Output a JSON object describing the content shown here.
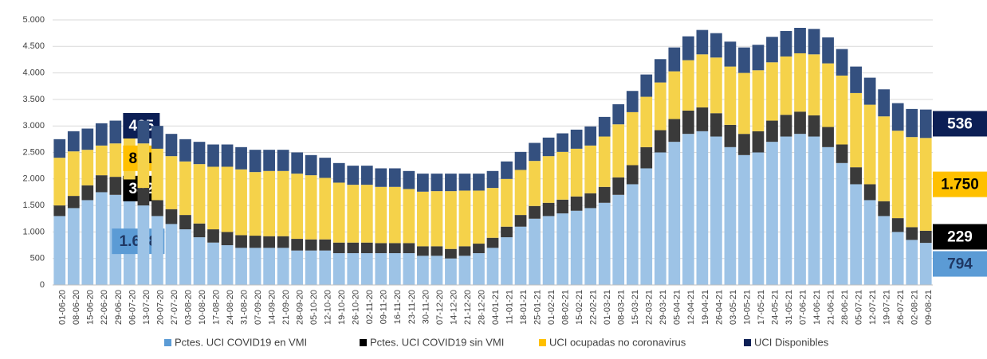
{
  "chart_data": {
    "type": "stacked_bar",
    "categories": [
      "01-06-20",
      "08-06-20",
      "15-06-20",
      "22-06-20",
      "29-06-20",
      "06-07-20",
      "13-07-20",
      "20-07-20",
      "27-07-20",
      "03-08-20",
      "10-08-20",
      "17-08-20",
      "24-08-20",
      "31-08-20",
      "07-09-20",
      "14-09-20",
      "21-09-20",
      "28-09-20",
      "05-10-20",
      "12-10-20",
      "19-10-20",
      "26-10-20",
      "02-11-20",
      "09-11-20",
      "16-11-20",
      "23-11-20",
      "30-11-20",
      "07-12-20",
      "14-12-20",
      "21-12-20",
      "28-12-20",
      "04-01-21",
      "11-01-21",
      "18-01-21",
      "25-01-21",
      "01-02-21",
      "08-02-21",
      "15-02-21",
      "22-02-21",
      "01-03-21",
      "08-03-21",
      "15-03-21",
      "22-03-21",
      "29-03-21",
      "05-04-21",
      "12-04-21",
      "19-04-21",
      "26-04-21",
      "03-05-21",
      "10-05-21",
      "17-05-21",
      "24-05-21",
      "31-05-21",
      "07-06-21",
      "14-06-21",
      "21-06-21",
      "28-06-21",
      "05-07-21",
      "12-07-21",
      "19-07-21",
      "26-07-21",
      "02-08-21",
      "09-08-21"
    ],
    "series": [
      {
        "name": "Pctes. UCI COVID19 en VMI",
        "color": "#9dc3e6",
        "label_color": "#5b9bd5",
        "label_text_color": "#1f3864",
        "values": [
          1300,
          1450,
          1600,
          1750,
          1700,
          1648,
          1500,
          1300,
          1150,
          1050,
          900,
          800,
          750,
          700,
          700,
          700,
          700,
          650,
          650,
          650,
          600,
          600,
          600,
          600,
          600,
          600,
          550,
          550,
          500,
          550,
          600,
          700,
          900,
          1100,
          1250,
          1300,
          1350,
          1400,
          1450,
          1550,
          1700,
          1900,
          2200,
          2500,
          2700,
          2850,
          2900,
          2800,
          2600,
          2450,
          2500,
          2700,
          2800,
          2850,
          2800,
          2600,
          2300,
          1900,
          1600,
          1300,
          1000,
          850,
          794
        ],
        "value_labels": [
          null,
          null,
          null,
          null,
          null,
          "1.648",
          null,
          null,
          null,
          null,
          null,
          null,
          null,
          null,
          null,
          null,
          null,
          null,
          null,
          null,
          null,
          null,
          null,
          null,
          null,
          null,
          null,
          null,
          null,
          null,
          null,
          null,
          null,
          null,
          null,
          null,
          null,
          null,
          null,
          null,
          null,
          null,
          null,
          null,
          null,
          null,
          null,
          null,
          null,
          null,
          null,
          null,
          null,
          null,
          null,
          null,
          null,
          null,
          null,
          null,
          null,
          null,
          "794"
        ]
      },
      {
        "name": "Pctes. UCI COVID19 sin VMI",
        "color": "#3a3a3a",
        "label_color": "#000000",
        "label_text_color": "#ffffff",
        "values": [
          200,
          230,
          280,
          320,
          340,
          342,
          330,
          300,
          280,
          270,
          260,
          250,
          250,
          240,
          230,
          220,
          220,
          220,
          210,
          210,
          200,
          200,
          200,
          190,
          190,
          190,
          180,
          180,
          180,
          180,
          180,
          190,
          200,
          220,
          240,
          250,
          260,
          270,
          280,
          300,
          330,
          360,
          400,
          420,
          430,
          440,
          450,
          440,
          420,
          400,
          400,
          400,
          410,
          420,
          400,
          380,
          350,
          320,
          300,
          280,
          260,
          240,
          229
        ],
        "value_labels": [
          null,
          null,
          null,
          null,
          null,
          "342",
          null,
          null,
          null,
          null,
          null,
          null,
          null,
          null,
          null,
          null,
          null,
          null,
          null,
          null,
          null,
          null,
          null,
          null,
          null,
          null,
          null,
          null,
          null,
          null,
          null,
          null,
          null,
          null,
          null,
          null,
          null,
          null,
          null,
          null,
          null,
          null,
          null,
          null,
          null,
          null,
          null,
          null,
          null,
          null,
          null,
          null,
          null,
          null,
          null,
          null,
          null,
          null,
          null,
          null,
          null,
          null,
          "229"
        ]
      },
      {
        "name": "UCI ocupadas no coronavirus",
        "color": "#f5d24a",
        "label_color": "#ffc000",
        "label_text_color": "#000000",
        "values": [
          900,
          840,
          670,
          560,
          630,
          801,
          840,
          970,
          1000,
          1010,
          1120,
          1180,
          1230,
          1240,
          1200,
          1230,
          1230,
          1230,
          1210,
          1160,
          1130,
          1090,
          1090,
          1060,
          1060,
          1020,
          1030,
          1040,
          1090,
          1050,
          1000,
          940,
          900,
          850,
          850,
          880,
          900,
          900,
          900,
          950,
          1000,
          1000,
          950,
          900,
          900,
          950,
          1000,
          1050,
          1100,
          1150,
          1150,
          1100,
          1100,
          1100,
          1150,
          1200,
          1300,
          1400,
          1500,
          1600,
          1650,
          1700,
          1750
        ],
        "value_labels": [
          null,
          null,
          null,
          null,
          null,
          "801",
          null,
          null,
          null,
          null,
          null,
          null,
          null,
          null,
          null,
          null,
          null,
          null,
          null,
          null,
          null,
          null,
          null,
          null,
          null,
          null,
          null,
          null,
          null,
          null,
          null,
          null,
          null,
          null,
          null,
          null,
          null,
          null,
          null,
          null,
          null,
          null,
          null,
          null,
          null,
          null,
          null,
          null,
          null,
          null,
          null,
          null,
          null,
          null,
          null,
          null,
          null,
          null,
          null,
          null,
          null,
          null,
          "1.750"
        ]
      },
      {
        "name": "UCI Disponibles",
        "color": "#34507f",
        "label_color": "#0c1f55",
        "label_text_color": "#ffffff",
        "values": [
          350,
          380,
          400,
          420,
          430,
          425,
          430,
          430,
          420,
          420,
          420,
          420,
          420,
          420,
          420,
          400,
          400,
          400,
          380,
          380,
          370,
          360,
          360,
          350,
          350,
          340,
          340,
          330,
          330,
          320,
          320,
          320,
          330,
          340,
          340,
          350,
          350,
          360,
          360,
          370,
          380,
          400,
          420,
          440,
          450,
          450,
          460,
          460,
          470,
          480,
          480,
          480,
          480,
          480,
          480,
          490,
          500,
          500,
          510,
          510,
          520,
          530,
          536
        ],
        "value_labels": [
          null,
          null,
          null,
          null,
          null,
          "425",
          null,
          null,
          null,
          null,
          null,
          null,
          null,
          null,
          null,
          null,
          null,
          null,
          null,
          null,
          null,
          null,
          null,
          null,
          null,
          null,
          null,
          null,
          null,
          null,
          null,
          null,
          null,
          null,
          null,
          null,
          null,
          null,
          null,
          null,
          null,
          null,
          null,
          null,
          null,
          null,
          null,
          null,
          null,
          null,
          null,
          null,
          null,
          null,
          null,
          null,
          null,
          null,
          null,
          null,
          null,
          null,
          "536"
        ]
      }
    ],
    "ylim": [
      0,
      5000
    ],
    "yticks": [
      0,
      500,
      {
        "value": 1000,
        "label": "1.000"
      },
      {
        "value": 1500,
        "label": "1.500"
      },
      {
        "value": 2000,
        "label": "2.000"
      },
      {
        "value": 2500,
        "label": "2.500"
      },
      {
        "value": 3000,
        "label": "3.000"
      },
      {
        "value": 3500,
        "label": "3.500"
      },
      {
        "value": 4000,
        "label": "4.000"
      },
      {
        "value": 4500,
        "label": "4.500"
      },
      {
        "value": 5000,
        "label": "5.000"
      }
    ],
    "grid": true,
    "legend": "bottom"
  }
}
